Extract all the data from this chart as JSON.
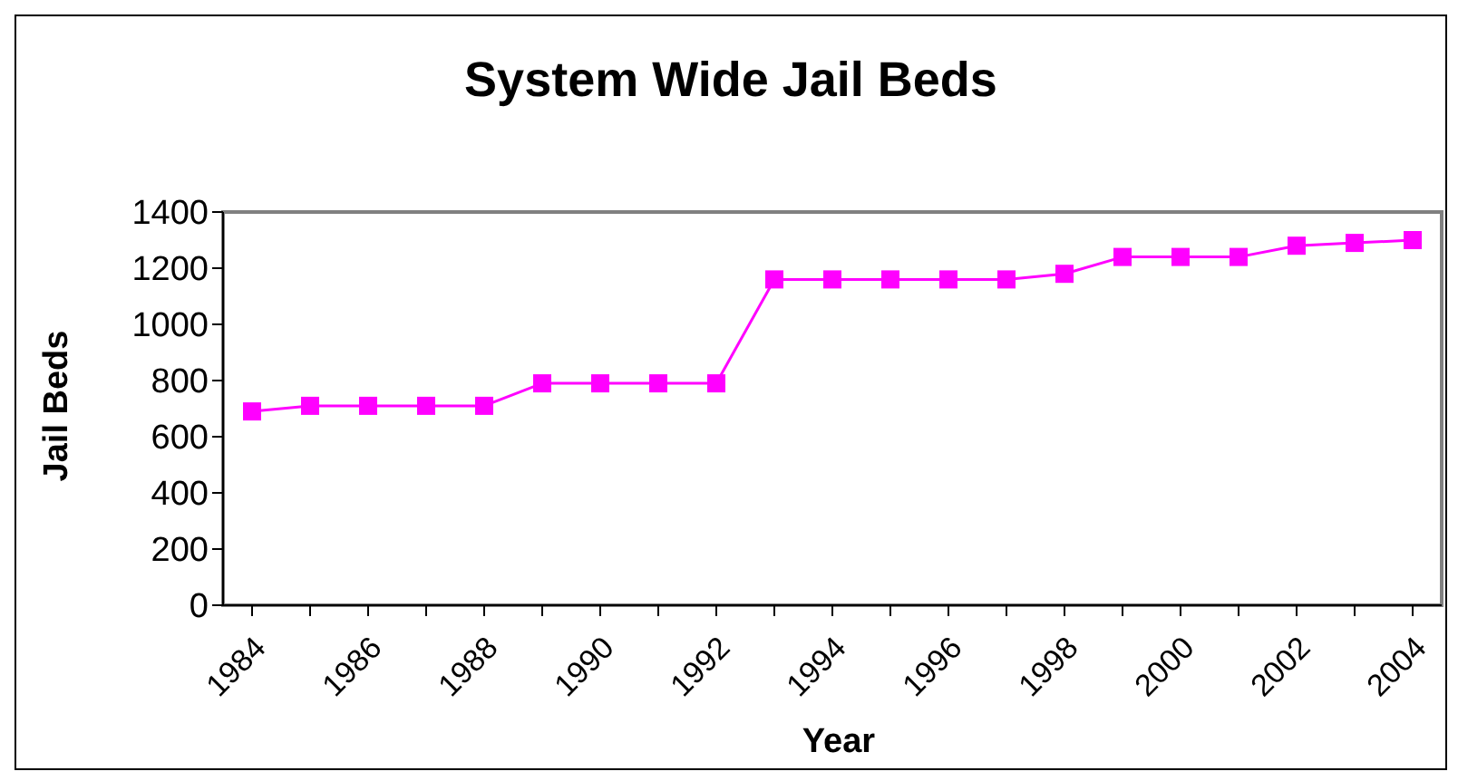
{
  "chart_data": {
    "type": "line",
    "title": "System Wide Jail Beds",
    "xlabel": "Year",
    "ylabel": "Jail Beds",
    "categories": [
      "1984",
      null,
      "1986",
      null,
      "1988",
      null,
      "1990",
      null,
      "1992",
      null,
      "1994",
      null,
      "1996",
      null,
      "1998",
      null,
      "2000",
      null,
      "2002",
      null,
      "2004"
    ],
    "series": [
      {
        "color": "#ff00ff",
        "values": [
          690,
          710,
          710,
          710,
          710,
          790,
          790,
          790,
          790,
          1160,
          1160,
          1160,
          1160,
          1160,
          1180,
          1240,
          1240,
          1240,
          1280,
          1290,
          1300
        ]
      }
    ],
    "ylim": [
      0,
      1400
    ],
    "yticks": [
      0,
      200,
      400,
      600,
      800,
      1000,
      1200,
      1400
    ],
    "grid": false,
    "legend": false,
    "marker": "square",
    "line_style": "solid"
  }
}
